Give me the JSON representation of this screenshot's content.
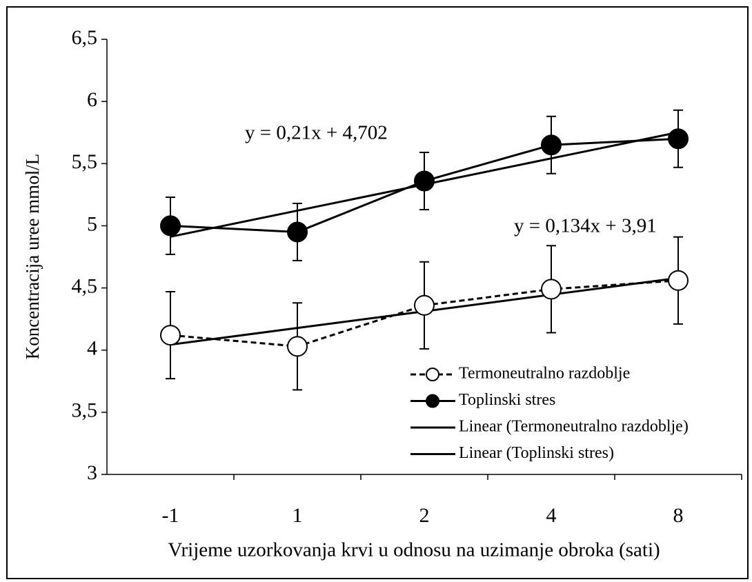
{
  "chart_data": {
    "type": "line",
    "categories": [
      "-1",
      "1",
      "2",
      "4",
      "8"
    ],
    "x_label": "Vrijeme uzorkovanja krvi u odnosu na uzimanje obroka (sati)",
    "y_label": "Koncentracija uree mmol/L",
    "ylim": [
      3,
      6.5
    ],
    "yticks": [
      3,
      {
        "value": 3.5,
        "label": "3,5"
      },
      4,
      {
        "value": 4.5,
        "label": "4,5"
      },
      5,
      {
        "value": 5.5,
        "label": "5,5"
      },
      6,
      {
        "value": 6.5,
        "label": "6,5"
      }
    ],
    "series": [
      {
        "name": "Termoneutralno razdoblje",
        "color": "#000000",
        "line_style": "dashed",
        "marker": "open",
        "values": [
          4.12,
          4.03,
          4.36,
          4.49,
          4.56
        ],
        "error": [
          0.35,
          0.35,
          0.35,
          0.35,
          0.35
        ]
      },
      {
        "name": "Toplinski stres",
        "color": "#000000",
        "line_style": "solid",
        "marker": "filled",
        "values": [
          5.0,
          4.95,
          5.36,
          5.65,
          5.7
        ],
        "error": [
          0.23,
          0.23,
          0.23,
          0.23,
          0.23
        ]
      },
      {
        "name": "Linear (Termoneutralno razdoblje)",
        "color": "#000000",
        "line_style": "solid",
        "marker": "none",
        "values": [
          4.044,
          4.178,
          4.312,
          4.446,
          4.58
        ]
      },
      {
        "name": "Linear (Toplinski stres)",
        "color": "#000000",
        "line_style": "solid",
        "marker": "none",
        "values": [
          4.912,
          5.122,
          5.332,
          5.542,
          5.752
        ]
      }
    ],
    "annotations": [
      "y = 0,21x + 4,702",
      "y = 0,134x + 3,91"
    ],
    "legend": "lower right"
  }
}
